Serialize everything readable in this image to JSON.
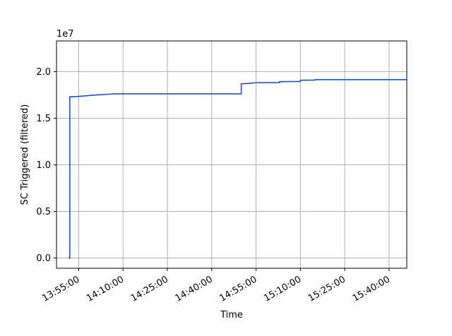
{
  "chart_data": {
    "type": "line",
    "xlabel": "Time",
    "ylabel": "SC Triggered (filtered)",
    "offset_label": "1e7",
    "xlim": [
      "13:47:30",
      "15:46:00"
    ],
    "ylim": [
      -1100000,
      23300000
    ],
    "grid": true,
    "x_ticks": [
      "13:55:00",
      "14:10:00",
      "14:25:00",
      "14:40:00",
      "14:55:00",
      "15:10:00",
      "15:25:00",
      "15:40:00"
    ],
    "y_ticks": [
      0,
      5000000,
      10000000,
      15000000,
      20000000
    ],
    "y_tick_labels": [
      "0.0",
      "0.5",
      "1.0",
      "1.5",
      "2.0"
    ],
    "series": [
      {
        "color": "#1f4fdc",
        "step": true,
        "points": [
          [
            "13:51:30",
            0
          ],
          [
            "13:52:00",
            0
          ],
          [
            "13:52:00",
            17300000
          ],
          [
            "13:55:00",
            17350000
          ],
          [
            "14:00:00",
            17480000
          ],
          [
            "14:05:00",
            17580000
          ],
          [
            "14:07:00",
            17620000
          ],
          [
            "14:50:00",
            17620000
          ],
          [
            "14:50:00",
            18700000
          ],
          [
            "14:53:00",
            18750000
          ],
          [
            "14:55:00",
            18820000
          ],
          [
            "15:03:00",
            18830000
          ],
          [
            "15:03:00",
            18930000
          ],
          [
            "15:10:00",
            18950000
          ],
          [
            "15:10:00",
            19080000
          ],
          [
            "15:15:00",
            19100000
          ],
          [
            "15:15:00",
            19150000
          ],
          [
            "15:46:00",
            19150000
          ]
        ]
      }
    ]
  }
}
